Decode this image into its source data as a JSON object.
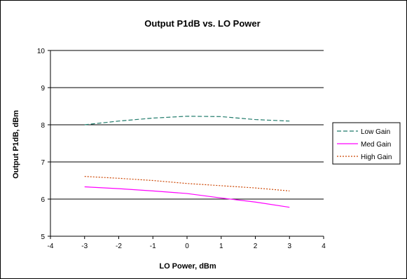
{
  "chart_data": {
    "type": "line",
    "title": "Output P1dB vs. LO Power",
    "xlabel": "LO Power, dBm",
    "ylabel": "Output P1dB, dBm",
    "xlim": [
      -4,
      4
    ],
    "ylim": [
      5,
      10
    ],
    "xticks": [
      -4,
      -3,
      -2,
      -1,
      0,
      1,
      2,
      3,
      4
    ],
    "yticks": [
      5,
      6,
      7,
      8,
      9,
      10
    ],
    "grid": "horizontal major gridlines",
    "legend_position": "right",
    "x": [
      -3,
      -2,
      -1,
      0,
      1,
      2,
      3
    ],
    "series": [
      {
        "name": "Low Gain",
        "color": "#1f7a6a",
        "dash": "dashed",
        "values": [
          8.0,
          8.1,
          8.18,
          8.23,
          8.22,
          8.14,
          8.1
        ]
      },
      {
        "name": "Med Gain",
        "color": "#ff00ff",
        "dash": "solid",
        "values": [
          6.33,
          6.28,
          6.22,
          6.15,
          6.03,
          5.92,
          5.78
        ]
      },
      {
        "name": "High Gain",
        "color": "#cc4400",
        "dash": "dotted",
        "values": [
          6.61,
          6.56,
          6.5,
          6.42,
          6.36,
          6.3,
          6.22
        ]
      }
    ]
  }
}
